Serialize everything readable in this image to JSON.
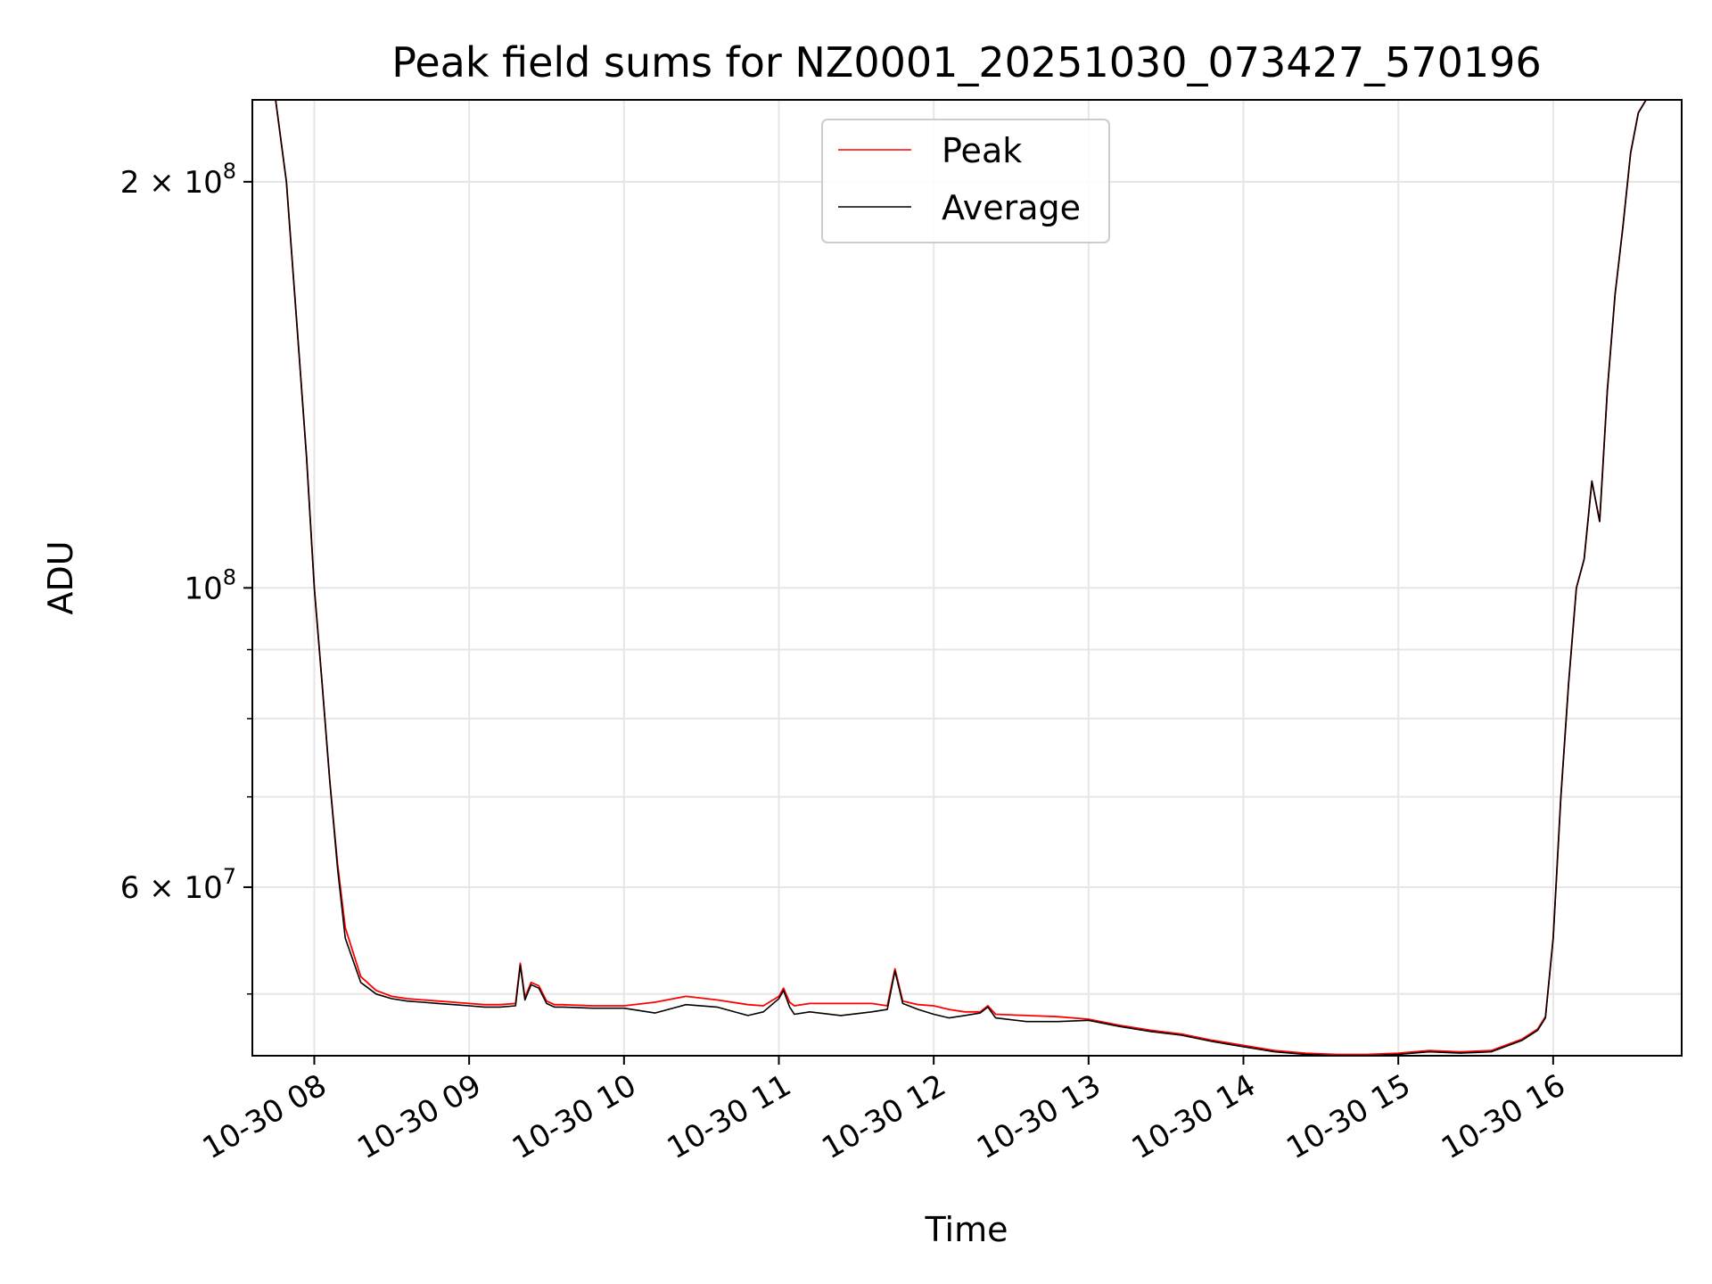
{
  "chart_data": {
    "type": "line",
    "title": "Peak field sums for NZ0001_20251030_073427_570196",
    "xlabel": "Time",
    "ylabel": "ADU",
    "yscale": "log",
    "ylim": [
      45000000,
      230000000
    ],
    "xlim_hours": [
      7.6,
      16.83
    ],
    "grid": true,
    "legend_location": "upper center",
    "x_ticks": [
      {
        "value": 8,
        "label": "10-30 08"
      },
      {
        "value": 9,
        "label": "10-30 09"
      },
      {
        "value": 10,
        "label": "10-30 10"
      },
      {
        "value": 11,
        "label": "10-30 11"
      },
      {
        "value": 12,
        "label": "10-30 12"
      },
      {
        "value": 13,
        "label": "10-30 13"
      },
      {
        "value": 14,
        "label": "10-30 14"
      },
      {
        "value": 15,
        "label": "10-30 15"
      },
      {
        "value": 16,
        "label": "10-30 16"
      }
    ],
    "y_major_ticks": [
      {
        "value": 60000000,
        "mantissa": "6 × 10",
        "exp": "7"
      },
      {
        "value": 100000000,
        "mantissa": "10",
        "exp": "8"
      },
      {
        "value": 200000000,
        "mantissa": "2 × 10",
        "exp": "8"
      }
    ],
    "y_minor_ticks": [
      50000000,
      60000000,
      70000000,
      80000000,
      90000000,
      200000000
    ],
    "series": [
      {
        "name": "Average",
        "color": "#000000",
        "x": [
          7.6,
          7.75,
          7.82,
          7.9,
          7.95,
          8.0,
          8.05,
          8.1,
          8.15,
          8.2,
          8.3,
          8.4,
          8.5,
          8.6,
          8.7,
          8.8,
          8.9,
          9.0,
          9.1,
          9.2,
          9.3,
          9.33,
          9.36,
          9.4,
          9.45,
          9.5,
          9.55,
          9.6,
          9.8,
          10.0,
          10.2,
          10.4,
          10.6,
          10.8,
          10.9,
          11.0,
          11.03,
          11.07,
          11.1,
          11.2,
          11.4,
          11.6,
          11.7,
          11.75,
          11.8,
          11.9,
          12.0,
          12.1,
          12.2,
          12.3,
          12.35,
          12.4,
          12.6,
          12.8,
          13.0,
          13.2,
          13.4,
          13.6,
          13.8,
          14.0,
          14.2,
          14.4,
          14.6,
          14.8,
          15.0,
          15.2,
          15.4,
          15.6,
          15.8,
          15.9,
          15.95,
          16.0,
          16.05,
          16.1,
          16.15,
          16.2,
          16.25,
          16.3,
          16.35,
          16.4,
          16.45,
          16.5,
          16.55,
          16.6,
          16.7,
          16.83
        ],
        "y": [
          230000000,
          230000000,
          200000000,
          150000000,
          125000000,
          100000000,
          85000000,
          72000000,
          62000000,
          55000000,
          51000000,
          50000000,
          49600000,
          49400000,
          49300000,
          49200000,
          49100000,
          49000000,
          48900000,
          48900000,
          49000000,
          52500000,
          49500000,
          50800000,
          50500000,
          49200000,
          48900000,
          48900000,
          48800000,
          48800000,
          48400000,
          49100000,
          48900000,
          48200000,
          48500000,
          49600000,
          50300000,
          48900000,
          48300000,
          48500000,
          48200000,
          48500000,
          48700000,
          52000000,
          49200000,
          48700000,
          48300000,
          48000000,
          48200000,
          48400000,
          48900000,
          48000000,
          47700000,
          47700000,
          47800000,
          47300000,
          46900000,
          46600000,
          46100000,
          45700000,
          45300000,
          45100000,
          45000000,
          45000000,
          45100000,
          45300000,
          45200000,
          45300000,
          46200000,
          47000000,
          48000000,
          55000000,
          70000000,
          85000000,
          100000000,
          105000000,
          120000000,
          112000000,
          140000000,
          165000000,
          185000000,
          210000000,
          225000000,
          230000000,
          230000000,
          230000000
        ]
      },
      {
        "name": "Peak",
        "color": "#ff0000",
        "x": [
          7.6,
          7.75,
          7.82,
          7.9,
          7.95,
          8.0,
          8.05,
          8.1,
          8.15,
          8.2,
          8.3,
          8.4,
          8.5,
          8.6,
          8.7,
          8.8,
          8.9,
          9.0,
          9.1,
          9.2,
          9.3,
          9.33,
          9.36,
          9.4,
          9.45,
          9.5,
          9.55,
          9.6,
          9.8,
          10.0,
          10.2,
          10.4,
          10.6,
          10.8,
          10.9,
          11.0,
          11.03,
          11.07,
          11.1,
          11.2,
          11.4,
          11.6,
          11.7,
          11.75,
          11.8,
          11.9,
          12.0,
          12.1,
          12.2,
          12.3,
          12.35,
          12.4,
          12.6,
          12.8,
          13.0,
          13.2,
          13.4,
          13.6,
          13.8,
          14.0,
          14.2,
          14.4,
          14.6,
          14.8,
          15.0,
          15.2,
          15.4,
          15.6,
          15.8,
          15.9,
          15.95,
          16.0,
          16.05,
          16.1,
          16.15,
          16.2,
          16.25,
          16.3,
          16.35,
          16.4,
          16.45,
          16.5,
          16.55,
          16.6,
          16.7,
          16.83
        ],
        "y": [
          230000000,
          230000000,
          200000000,
          150000000,
          125000000,
          100000000,
          85000000,
          72000000,
          62500000,
          56000000,
          51500000,
          50300000,
          49800000,
          49600000,
          49500000,
          49400000,
          49300000,
          49200000,
          49100000,
          49100000,
          49200000,
          52700000,
          49700000,
          51000000,
          50700000,
          49400000,
          49100000,
          49100000,
          49000000,
          49000000,
          49300000,
          49800000,
          49500000,
          49100000,
          49000000,
          49800000,
          50500000,
          49300000,
          49000000,
          49200000,
          49200000,
          49200000,
          49000000,
          52200000,
          49400000,
          49100000,
          49000000,
          48700000,
          48500000,
          48500000,
          49000000,
          48300000,
          48200000,
          48100000,
          47900000,
          47400000,
          47000000,
          46700000,
          46200000,
          45800000,
          45400000,
          45200000,
          45100000,
          45100000,
          45200000,
          45400000,
          45300000,
          45400000,
          46300000,
          47100000,
          48100000,
          55000000,
          70000000,
          85000000,
          100000000,
          105000000,
          120000000,
          112000000,
          140000000,
          165000000,
          185000000,
          210000000,
          225000000,
          230000000,
          230000000,
          230000000
        ]
      }
    ],
    "legend": [
      {
        "label": "Peak",
        "color": "#ff0000"
      },
      {
        "label": "Average",
        "color": "#000000"
      }
    ]
  }
}
